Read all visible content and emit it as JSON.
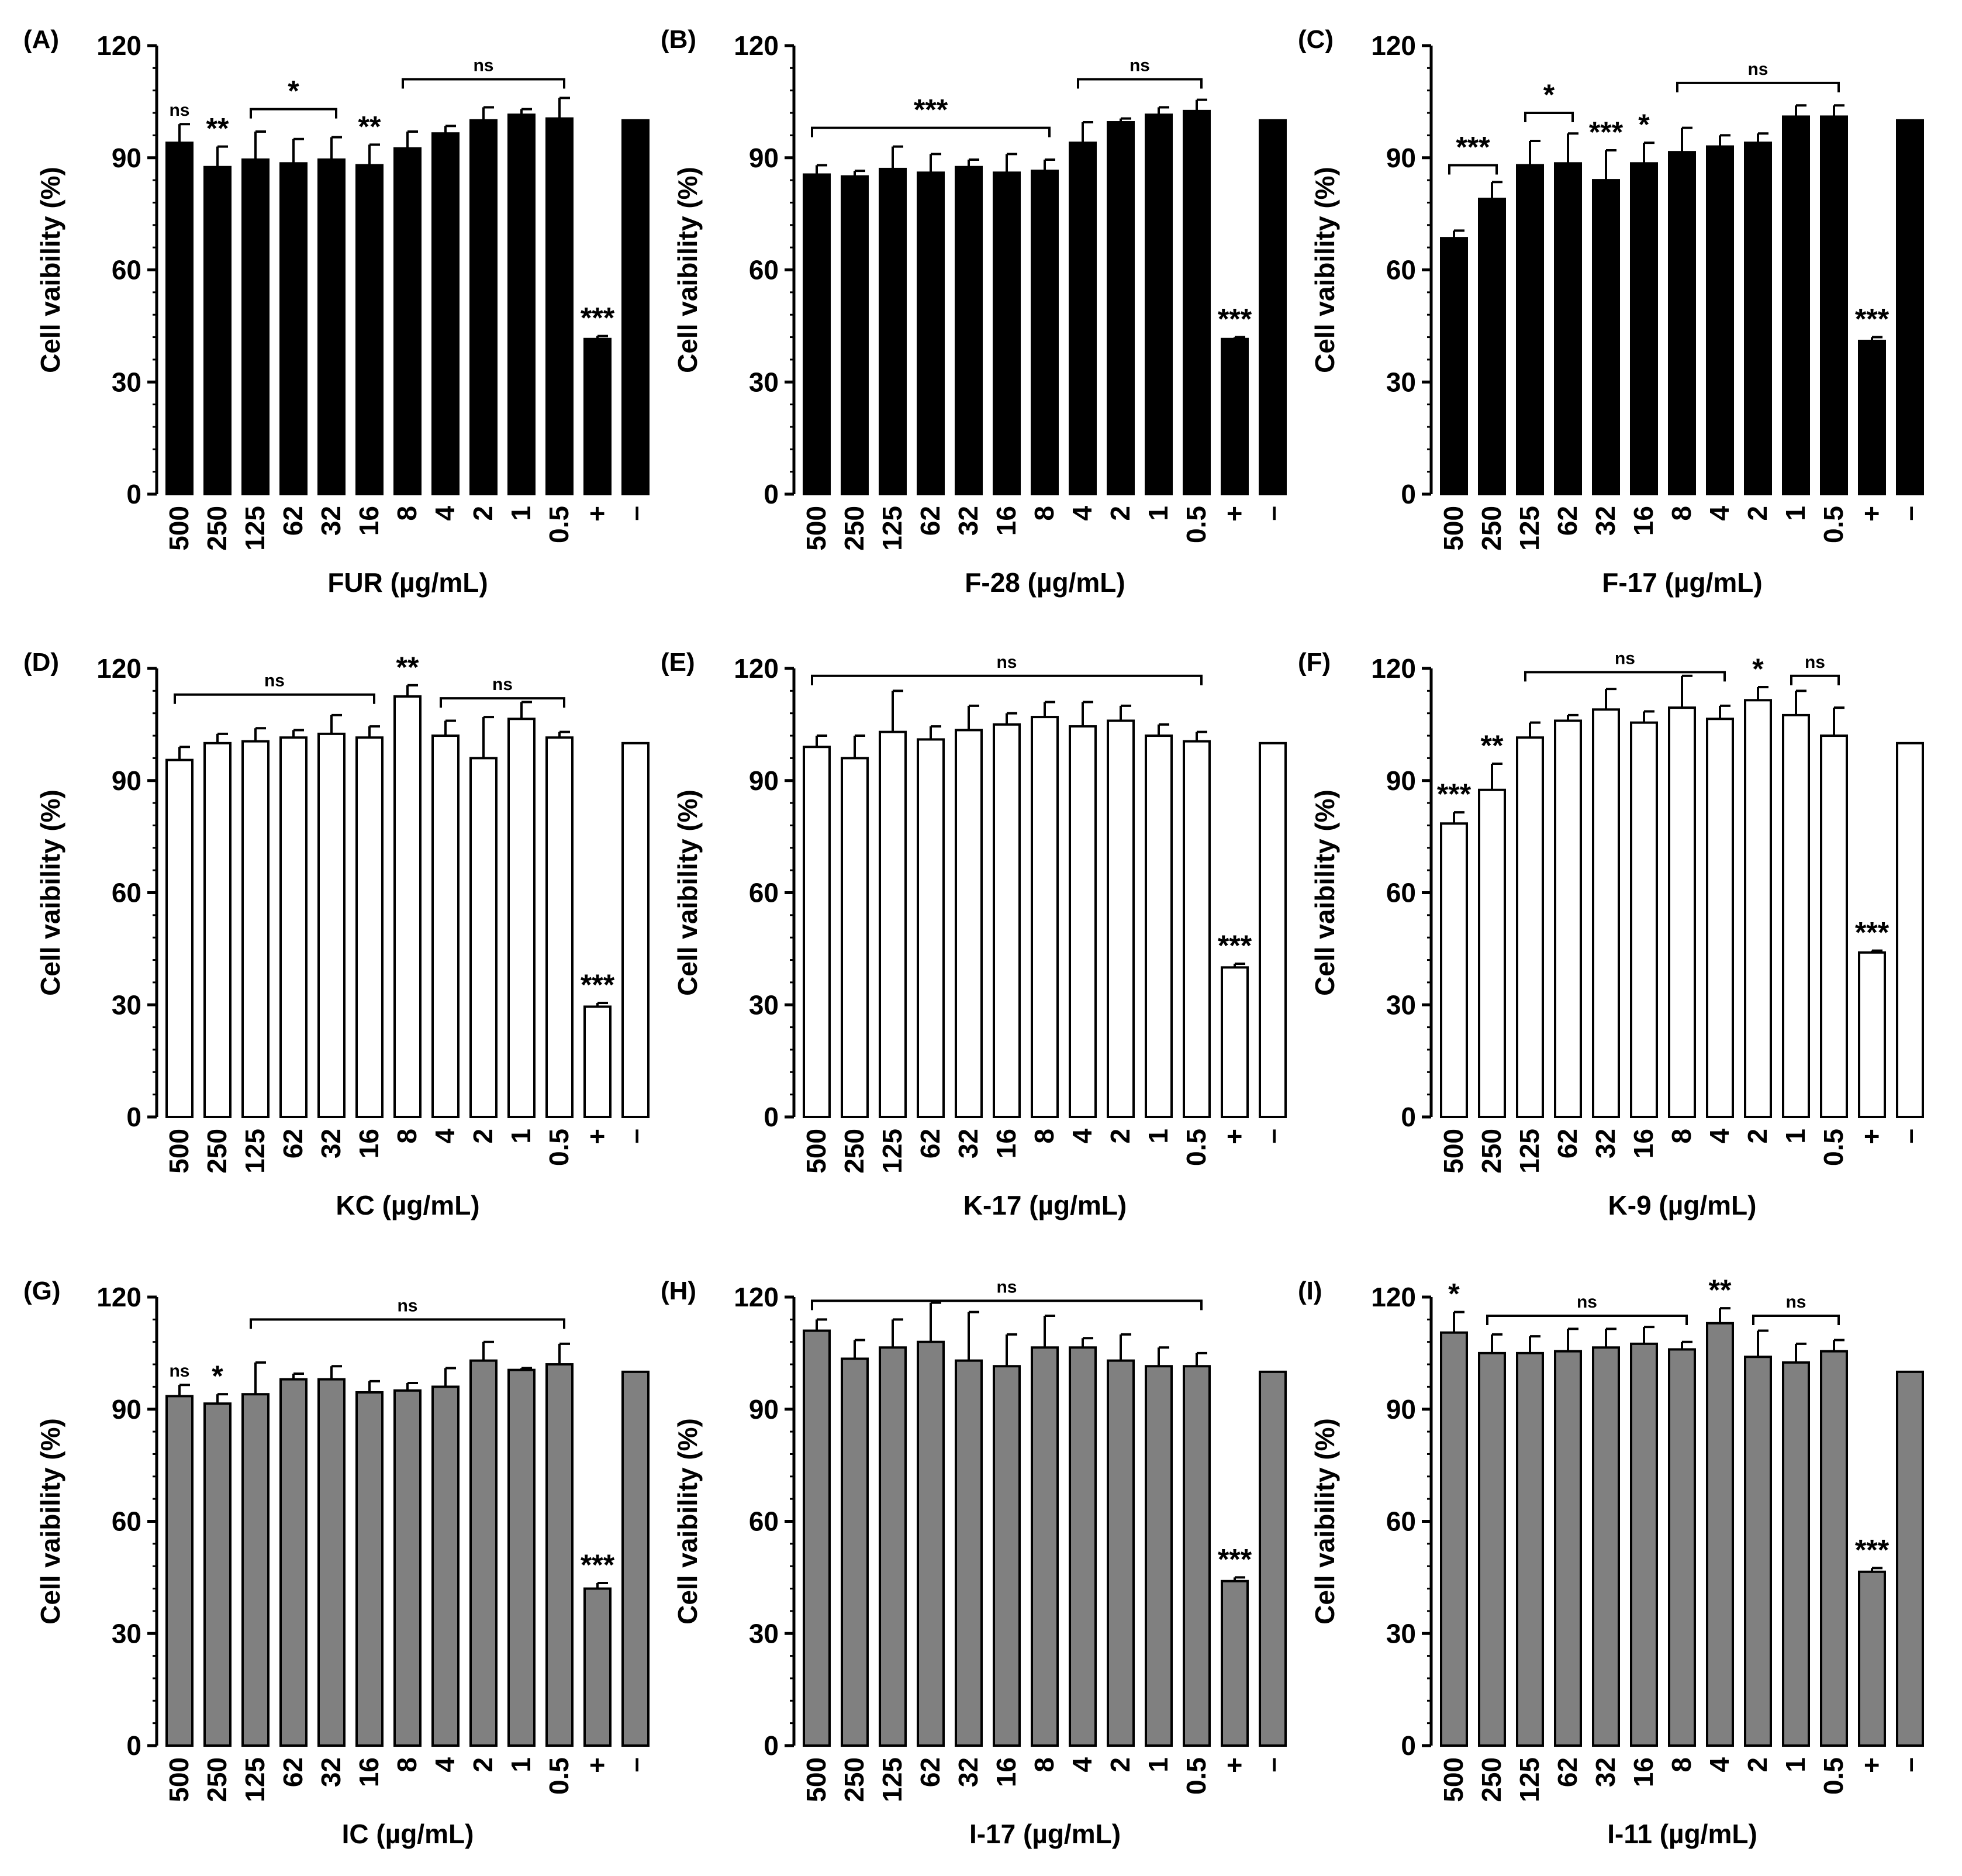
{
  "figure": {
    "colors": {
      "black": "#000000",
      "white": "#ffffff",
      "gray": "#808080"
    },
    "y_axis_label": "Cell vaibility (%)",
    "y_ticks": [
      0,
      30,
      60,
      90,
      120
    ],
    "categories": [
      "500",
      "250",
      "125",
      "62",
      "32",
      "16",
      "8",
      "4",
      "2",
      "1",
      "0.5",
      "+",
      "–"
    ]
  },
  "chart_data": [
    {
      "type": "bar",
      "panel_label": "(A)",
      "xlabel": "FUR (µg/mL)",
      "ylabel": "Cell vaibility (%)",
      "ylim": [
        0,
        120
      ],
      "fill": "black",
      "categories": [
        "500",
        "250",
        "125",
        "62",
        "32",
        "16",
        "8",
        "4",
        "2",
        "1",
        "0.5",
        "+",
        "–"
      ],
      "values": [
        94,
        87.5,
        89.5,
        88.5,
        89.5,
        88,
        92.5,
        96.5,
        100,
        101.5,
        100.5,
        41.5,
        100
      ],
      "errors": [
        5,
        5.5,
        7.5,
        6.5,
        6,
        5.5,
        4.5,
        2,
        3.5,
        1.5,
        5.5,
        0.8,
        0
      ],
      "bar_stars": [
        {
          "bar": 0,
          "text": "ns"
        },
        {
          "bar": 1,
          "text": "**"
        },
        {
          "bar": 5,
          "text": "**"
        },
        {
          "bar": 11,
          "text": "***"
        }
      ],
      "brackets": [
        {
          "from": 2,
          "to": 4,
          "text": "*",
          "y": 103
        },
        {
          "from": 6,
          "to": 10,
          "text": "ns",
          "y": 111
        }
      ]
    },
    {
      "type": "bar",
      "panel_label": "(B)",
      "xlabel": "F-28 (µg/mL)",
      "ylabel": "Cell vaibility (%)",
      "ylim": [
        0,
        120
      ],
      "fill": "black",
      "categories": [
        "500",
        "250",
        "125",
        "62",
        "32",
        "16",
        "8",
        "4",
        "2",
        "1",
        "0.5",
        "+",
        "–"
      ],
      "values": [
        85.5,
        85,
        87,
        86,
        87.5,
        86,
        86.5,
        94,
        99.5,
        101.5,
        102.5,
        41.5,
        100
      ],
      "errors": [
        2.5,
        1.5,
        6,
        5,
        2,
        5,
        3,
        5.5,
        1,
        2,
        3,
        0.5,
        0
      ],
      "bar_stars": [
        {
          "bar": 11,
          "text": "***"
        }
      ],
      "brackets": [
        {
          "from": 0,
          "to": 6,
          "text": "***",
          "y": 98
        },
        {
          "from": 7,
          "to": 10,
          "text": "ns",
          "y": 111
        }
      ]
    },
    {
      "type": "bar",
      "panel_label": "(C)",
      "xlabel": "F-17 (µg/mL)",
      "ylabel": "Cell vaibility (%)",
      "ylim": [
        0,
        120
      ],
      "fill": "black",
      "categories": [
        "500",
        "250",
        "125",
        "62",
        "32",
        "16",
        "8",
        "4",
        "2",
        "1",
        "0.5",
        "+",
        "–"
      ],
      "values": [
        68.5,
        79,
        88,
        88.5,
        84,
        88.5,
        91.5,
        93,
        94,
        101,
        101,
        41,
        100
      ],
      "errors": [
        2,
        4.5,
        6.5,
        8,
        8,
        5.5,
        6.5,
        3,
        2.5,
        3,
        3,
        1,
        0
      ],
      "bar_stars": [
        {
          "bar": 4,
          "text": "***"
        },
        {
          "bar": 5,
          "text": "*"
        },
        {
          "bar": 11,
          "text": "***"
        }
      ],
      "brackets": [
        {
          "from": 0,
          "to": 1,
          "text": "***",
          "y": 88
        },
        {
          "from": 2,
          "to": 3,
          "text": "*",
          "y": 102
        },
        {
          "from": 6,
          "to": 10,
          "text": "ns",
          "y": 110
        }
      ]
    },
    {
      "type": "bar",
      "panel_label": "(D)",
      "xlabel": "KC (µg/mL)",
      "ylabel": "Cell vaibility (%)",
      "ylim": [
        0,
        120
      ],
      "fill": "white",
      "categories": [
        "500",
        "250",
        "125",
        "62",
        "32",
        "16",
        "8",
        "4",
        "2",
        "1",
        "0.5",
        "+",
        "–"
      ],
      "values": [
        95.5,
        100,
        100.5,
        101.5,
        102.5,
        101.5,
        112.5,
        102,
        96,
        106.5,
        101.5,
        29.5,
        100
      ],
      "errors": [
        3.5,
        2.5,
        3.5,
        2,
        5,
        3,
        3,
        4,
        11,
        4.5,
        1.5,
        1,
        0
      ],
      "bar_stars": [
        {
          "bar": 6,
          "text": "**"
        },
        {
          "bar": 11,
          "text": "***"
        }
      ],
      "brackets": [
        {
          "from": 0,
          "to": 5,
          "text": "ns",
          "y": 113
        },
        {
          "from": 7,
          "to": 10,
          "text": "ns",
          "y": 112
        }
      ]
    },
    {
      "type": "bar",
      "panel_label": "(E)",
      "xlabel": "K-17 (µg/mL)",
      "ylabel": "Cell vaibility (%)",
      "ylim": [
        0,
        120
      ],
      "fill": "white",
      "categories": [
        "500",
        "250",
        "125",
        "62",
        "32",
        "16",
        "8",
        "4",
        "2",
        "1",
        "0.5",
        "+",
        "–"
      ],
      "values": [
        99,
        96,
        103,
        101,
        103.5,
        105,
        107,
        104.5,
        106,
        102,
        100.5,
        40,
        100
      ],
      "errors": [
        3,
        6,
        11,
        3.5,
        6.5,
        3,
        4,
        6.5,
        4,
        3,
        2.5,
        1,
        0
      ],
      "bar_stars": [
        {
          "bar": 11,
          "text": "***"
        }
      ],
      "brackets": [
        {
          "from": 0,
          "to": 10,
          "text": "ns",
          "y": 118
        }
      ]
    },
    {
      "type": "bar",
      "panel_label": "(F)",
      "xlabel": "K-9 (µg/mL)",
      "ylabel": "Cell vaibility (%)",
      "ylim": [
        0,
        120
      ],
      "fill": "white",
      "categories": [
        "500",
        "250",
        "125",
        "62",
        "32",
        "16",
        "8",
        "4",
        "2",
        "1",
        "0.5",
        "+",
        "–"
      ],
      "values": [
        78.5,
        87.5,
        101.5,
        106,
        109,
        105.5,
        109.5,
        106.5,
        111.5,
        107.5,
        102,
        44,
        100
      ],
      "errors": [
        3,
        7,
        4,
        1.5,
        5.5,
        3,
        8.5,
        3.5,
        3.5,
        6.5,
        7.5,
        0.5,
        0
      ],
      "bar_stars": [
        {
          "bar": 0,
          "text": "***"
        },
        {
          "bar": 1,
          "text": "**"
        },
        {
          "bar": 8,
          "text": "*"
        },
        {
          "bar": 11,
          "text": "***"
        }
      ],
      "brackets": [
        {
          "from": 2,
          "to": 7,
          "text": "ns",
          "y": 119
        },
        {
          "from": 9,
          "to": 10,
          "text": "ns",
          "y": 118
        }
      ]
    },
    {
      "type": "bar",
      "panel_label": "(G)",
      "xlabel": "IC (µg/mL)",
      "ylabel": "Cell vaibility (%)",
      "ylim": [
        0,
        120
      ],
      "fill": "gray",
      "categories": [
        "500",
        "250",
        "125",
        "62",
        "32",
        "16",
        "8",
        "4",
        "2",
        "1",
        "0.5",
        "+",
        "–"
      ],
      "values": [
        93.5,
        91.5,
        94,
        98,
        98,
        94.5,
        95,
        96,
        103,
        100.5,
        102,
        42,
        100
      ],
      "errors": [
        3,
        2.5,
        8.5,
        1.5,
        3.5,
        3,
        2,
        5,
        5,
        0.5,
        5.5,
        1.5,
        0
      ],
      "bar_stars": [
        {
          "bar": 0,
          "text": "ns"
        },
        {
          "bar": 1,
          "text": "*"
        },
        {
          "bar": 11,
          "text": "***"
        }
      ],
      "brackets": [
        {
          "from": 2,
          "to": 10,
          "text": "ns",
          "y": 114
        }
      ]
    },
    {
      "type": "bar",
      "panel_label": "(H)",
      "xlabel": "I-17 (µg/mL)",
      "ylabel": "Cell vaibility (%)",
      "ylim": [
        0,
        120
      ],
      "fill": "gray",
      "categories": [
        "500",
        "250",
        "125",
        "62",
        "32",
        "16",
        "8",
        "4",
        "2",
        "1",
        "0.5",
        "+",
        "–"
      ],
      "values": [
        111,
        103.5,
        106.5,
        108,
        103,
        101.5,
        106.5,
        106.5,
        103,
        101.5,
        101.5,
        44,
        100
      ],
      "errors": [
        3,
        5,
        7.5,
        10.5,
        13,
        8.5,
        8.5,
        2.5,
        7,
        5,
        3.5,
        1,
        0
      ],
      "bar_stars": [
        {
          "bar": 11,
          "text": "***"
        }
      ],
      "brackets": [
        {
          "from": 0,
          "to": 10,
          "text": "ns",
          "y": 119
        }
      ]
    },
    {
      "type": "bar",
      "panel_label": "(I)",
      "xlabel": "I-11 (µg/mL)",
      "ylabel": "Cell vaibility (%)",
      "ylim": [
        0,
        120
      ],
      "fill": "gray",
      "categories": [
        "500",
        "250",
        "125",
        "62",
        "32",
        "16",
        "8",
        "4",
        "2",
        "1",
        "0.5",
        "+",
        "–"
      ],
      "values": [
        110.5,
        105,
        105,
        105.5,
        106.5,
        107.5,
        106,
        113,
        104,
        102.5,
        105.5,
        46.5,
        100
      ],
      "errors": [
        5.5,
        5,
        4.5,
        6,
        5,
        4.5,
        2,
        4,
        7,
        5,
        3,
        1,
        0
      ],
      "bar_stars": [
        {
          "bar": 0,
          "text": "*"
        },
        {
          "bar": 7,
          "text": "**"
        },
        {
          "bar": 11,
          "text": "***"
        }
      ],
      "brackets": [
        {
          "from": 1,
          "to": 6,
          "text": "ns",
          "y": 115
        },
        {
          "from": 8,
          "to": 10,
          "text": "ns",
          "y": 115
        }
      ]
    }
  ]
}
